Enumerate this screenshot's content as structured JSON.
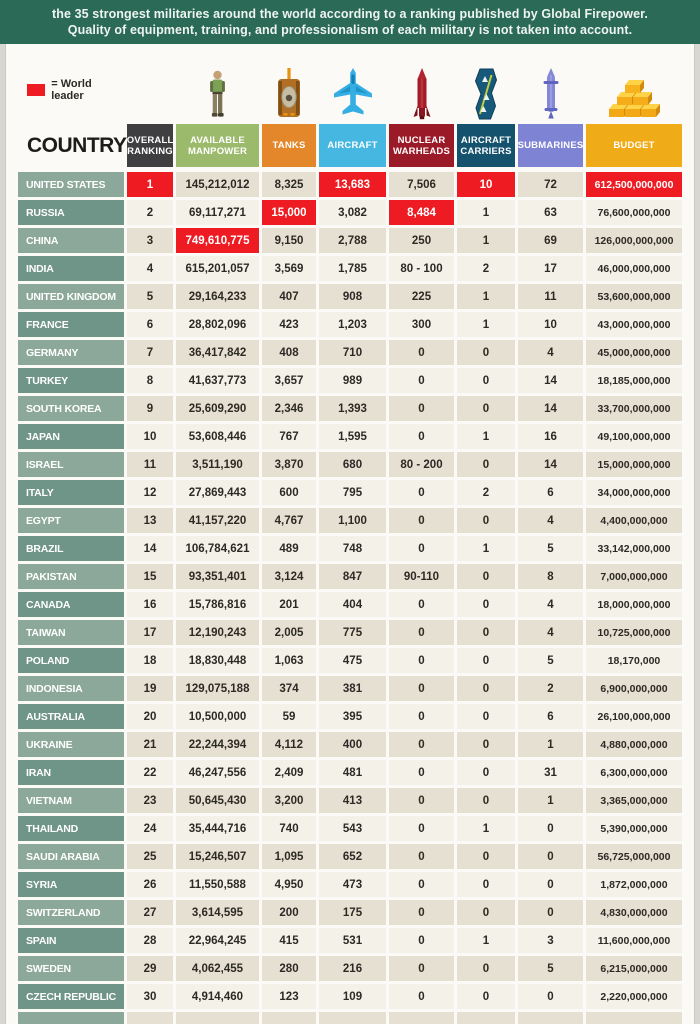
{
  "banner": {
    "line1": "the 35 strongest militaries around the world according to a ranking published by Global Firepower.",
    "line2": "Quality of equipment, training, and professionalism of each military is not taken into account."
  },
  "legend": {
    "label": "= World leader",
    "swatch_color": "#ee1b23"
  },
  "table": {
    "country_header": "COUNTRY",
    "columns": [
      {
        "id": "ranking",
        "label": "OVERALL RANKING",
        "color": "#3f3f41",
        "icon": null
      },
      {
        "id": "manpower",
        "label": "AVAILABLE MANPOWER",
        "color": "#9cba6c",
        "icon": "soldier-icon"
      },
      {
        "id": "tanks",
        "label": "TANKS",
        "color": "#e3872a",
        "icon": "tank-icon"
      },
      {
        "id": "aircraft",
        "label": "AIRCRAFT",
        "color": "#45b7e0",
        "icon": "fighter-jet-icon"
      },
      {
        "id": "nuclear",
        "label": "NUCLEAR WARHEADS",
        "color": "#9b1a28",
        "icon": "missile-icon"
      },
      {
        "id": "carriers",
        "label": "AIRCRAFT CARRIERS",
        "color": "#15526d",
        "icon": "aircraft-carrier-icon"
      },
      {
        "id": "submarines",
        "label": "SUBMARINES",
        "color": "#7e83d4",
        "icon": "submarine-icon"
      },
      {
        "id": "budget",
        "label": "BUDGET",
        "color": "#f0ab18",
        "icon": "gold-bars-icon"
      }
    ]
  },
  "colors": {
    "banner_green": "#2c6a58",
    "world_leader_red": "#ee1b23",
    "country_cell_light": "#8ca89b",
    "country_cell_dark": "#6f9488",
    "data_cell_dark": "#e5e0d2",
    "data_cell_light": "#f4f1e8"
  },
  "chart_data": {
    "type": "table",
    "legend": "red cell = World leader",
    "columns": [
      "COUNTRY",
      "OVERALL RANKING",
      "AVAILABLE MANPOWER",
      "TANKS",
      "AIRCRAFT",
      "NUCLEAR WARHEADS",
      "AIRCRAFT CARRIERS",
      "SUBMARINES",
      "BUDGET"
    ],
    "rows": [
      [
        "UNITED STATES",
        "1",
        "145,212,012",
        "8,325",
        "13,683",
        "7,506",
        "10",
        "72",
        "612,500,000,000"
      ],
      [
        "RUSSIA",
        "2",
        "69,117,271",
        "15,000",
        "3,082",
        "8,484",
        "1",
        "63",
        "76,600,000,000"
      ],
      [
        "CHINA",
        "3",
        "749,610,775",
        "9,150",
        "2,788",
        "250",
        "1",
        "69",
        "126,000,000,000"
      ],
      [
        "INDIA",
        "4",
        "615,201,057",
        "3,569",
        "1,785",
        "80 - 100",
        "2",
        "17",
        "46,000,000,000"
      ],
      [
        "UNITED KINGDOM",
        "5",
        "29,164,233",
        "407",
        "908",
        "225",
        "1",
        "11",
        "53,600,000,000"
      ],
      [
        "FRANCE",
        "6",
        "28,802,096",
        "423",
        "1,203",
        "300",
        "1",
        "10",
        "43,000,000,000"
      ],
      [
        "GERMANY",
        "7",
        "36,417,842",
        "408",
        "710",
        "0",
        "0",
        "4",
        "45,000,000,000"
      ],
      [
        "TURKEY",
        "8",
        "41,637,773",
        "3,657",
        "989",
        "0",
        "0",
        "14",
        "18,185,000,000"
      ],
      [
        "SOUTH KOREA",
        "9",
        "25,609,290",
        "2,346",
        "1,393",
        "0",
        "0",
        "14",
        "33,700,000,000"
      ],
      [
        "JAPAN",
        "10",
        "53,608,446",
        "767",
        "1,595",
        "0",
        "1",
        "16",
        "49,100,000,000"
      ],
      [
        "ISRAEL",
        "11",
        "3,511,190",
        "3,870",
        "680",
        "80 - 200",
        "0",
        "14",
        "15,000,000,000"
      ],
      [
        "ITALY",
        "12",
        "27,869,443",
        "600",
        "795",
        "0",
        "2",
        "6",
        "34,000,000,000"
      ],
      [
        "EGYPT",
        "13",
        "41,157,220",
        "4,767",
        "1,100",
        "0",
        "0",
        "4",
        "4,400,000,000"
      ],
      [
        "BRAZIL",
        "14",
        "106,784,621",
        "489",
        "748",
        "0",
        "1",
        "5",
        "33,142,000,000"
      ],
      [
        "PAKISTAN",
        "15",
        "93,351,401",
        "3,124",
        "847",
        "90-110",
        "0",
        "8",
        "7,000,000,000"
      ],
      [
        "CANADA",
        "16",
        "15,786,816",
        "201",
        "404",
        "0",
        "0",
        "4",
        "18,000,000,000"
      ],
      [
        "TAIWAN",
        "17",
        "12,190,243",
        "2,005",
        "775",
        "0",
        "0",
        "4",
        "10,725,000,000"
      ],
      [
        "POLAND",
        "18",
        "18,830,448",
        "1,063",
        "475",
        "0",
        "0",
        "5",
        "18,170,000"
      ],
      [
        "INDONESIA",
        "19",
        "129,075,188",
        "374",
        "381",
        "0",
        "0",
        "2",
        "6,900,000,000"
      ],
      [
        "AUSTRALIA",
        "20",
        "10,500,000",
        "59",
        "395",
        "0",
        "0",
        "6",
        "26,100,000,000"
      ],
      [
        "UKRAINE",
        "21",
        "22,244,394",
        "4,112",
        "400",
        "0",
        "0",
        "1",
        "4,880,000,000"
      ],
      [
        "IRAN",
        "22",
        "46,247,556",
        "2,409",
        "481",
        "0",
        "0",
        "31",
        "6,300,000,000"
      ],
      [
        "VIETNAM",
        "23",
        "50,645,430",
        "3,200",
        "413",
        "0",
        "0",
        "1",
        "3,365,000,000"
      ],
      [
        "THAILAND",
        "24",
        "35,444,716",
        "740",
        "543",
        "0",
        "1",
        "0",
        "5,390,000,000"
      ],
      [
        "SAUDI ARABIA",
        "25",
        "15,246,507",
        "1,095",
        "652",
        "0",
        "0",
        "0",
        "56,725,000,000"
      ],
      [
        "SYRIA",
        "26",
        "11,550,588",
        "4,950",
        "473",
        "0",
        "0",
        "0",
        "1,872,000,000"
      ],
      [
        "SWITZERLAND",
        "27",
        "3,614,595",
        "200",
        "175",
        "0",
        "0",
        "0",
        "4,830,000,000"
      ],
      [
        "SPAIN",
        "28",
        "22,964,245",
        "415",
        "531",
        "0",
        "1",
        "3",
        "11,600,000,000"
      ],
      [
        "SWEDEN",
        "29",
        "4,062,455",
        "280",
        "216",
        "0",
        "0",
        "5",
        "6,215,000,000"
      ],
      [
        "CZECH REPUBLIC",
        "30",
        "4,914,460",
        "123",
        "109",
        "0",
        "0",
        "0",
        "2,220,000,000"
      ]
    ],
    "world_leader_cells": [
      [
        0,
        1
      ],
      [
        0,
        4
      ],
      [
        0,
        6
      ],
      [
        0,
        8
      ],
      [
        1,
        3
      ],
      [
        1,
        5
      ],
      [
        2,
        2
      ]
    ],
    "partial_row_visible_at_bottom": true
  }
}
